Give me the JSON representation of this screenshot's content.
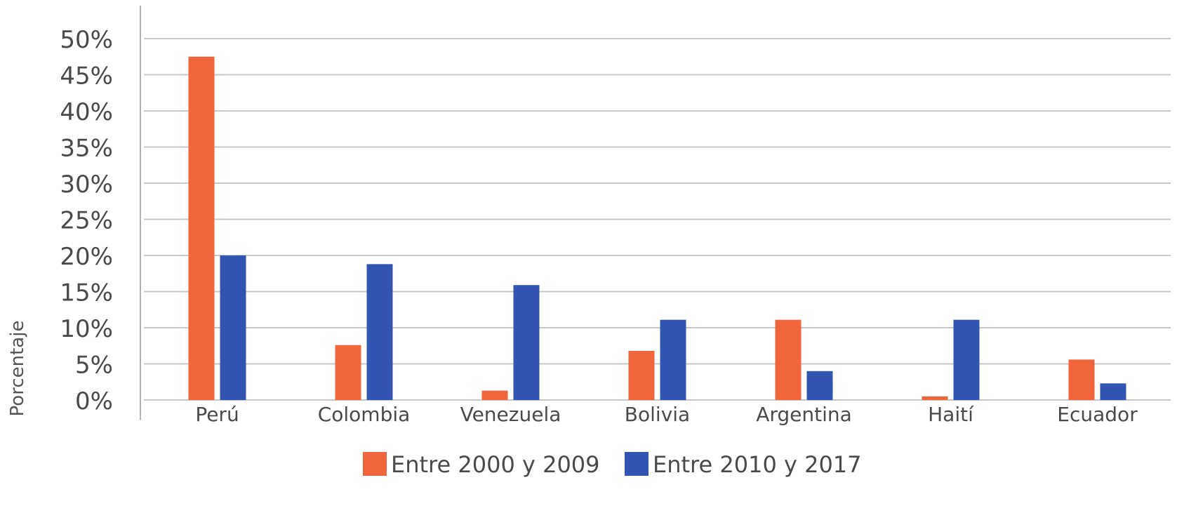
{
  "chart_data": {
    "type": "bar",
    "title": "",
    "xlabel": "",
    "ylabel": "Porcentaje",
    "categories": [
      "Perú",
      "Colombia",
      "Venezuela",
      "Bolivia",
      "Argentina",
      "Haití",
      "Ecuador"
    ],
    "series": [
      {
        "name": "Entre 2000 y 2009",
        "color": "#f0653c",
        "values": [
          47.5,
          7.6,
          1.3,
          6.8,
          11.1,
          0.5,
          5.6
        ]
      },
      {
        "name": "Entre 2010 y 2017",
        "color": "#3355b2",
        "values": [
          20.0,
          18.8,
          15.9,
          11.1,
          4.0,
          11.1,
          2.3
        ]
      }
    ],
    "ylim": [
      0,
      50
    ],
    "yticks": [
      0,
      5,
      10,
      15,
      20,
      25,
      30,
      35,
      40,
      45,
      50
    ],
    "ytick_suffix": "%",
    "grid": "horizontal",
    "legend_position": "bottom"
  }
}
